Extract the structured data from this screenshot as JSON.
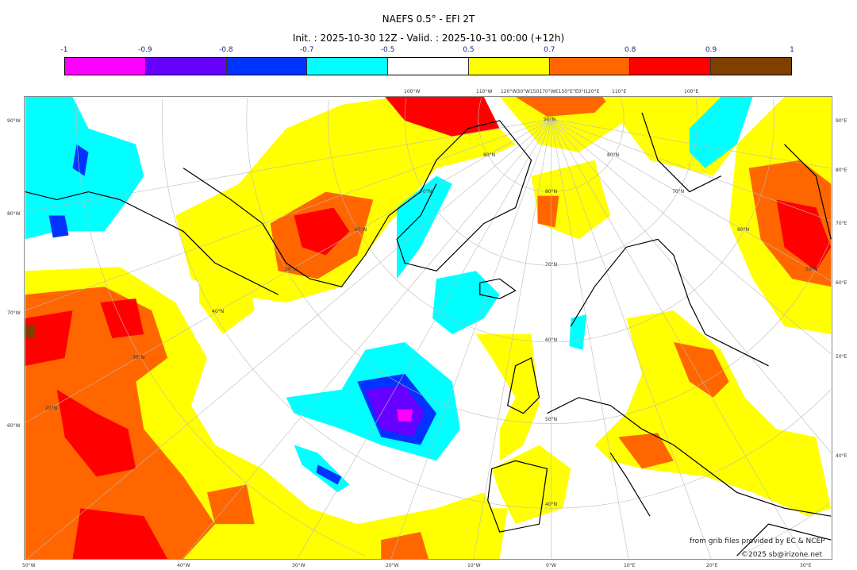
{
  "title": "NAEFS 0.5° - EFI 2T",
  "subtitle": "Init. : 2025-10-30 12Z - Valid. : 2025-10-31 00:00 (+12h)",
  "legend": {
    "ticks": [
      "-1",
      "-0.9",
      "-0.8",
      "-0.7",
      "-0.5",
      "0.5",
      "0.7",
      "0.8",
      "0.9",
      "1"
    ],
    "colors": [
      "#ff00ff",
      "#6600ff",
      "#0033ff",
      "#00ffff",
      "#ffffff",
      "#ffff00",
      "#ff6600",
      "#ff0000",
      "#7f3f00"
    ]
  },
  "axes": {
    "left": [
      "90°W",
      "80°W",
      "70°W",
      "60°W"
    ],
    "right": [
      "90°E",
      "80°E",
      "70°E",
      "60°E",
      "50°E",
      "40°E"
    ],
    "bottom": [
      "50°W",
      "40°W",
      "30°W",
      "20°W",
      "10°W",
      "0°W",
      "10°E",
      "20°E",
      "30°E"
    ],
    "top": [
      "100°W",
      "110°W",
      "120°W30°W150170°W€150°E°E0°I120°E",
      "110°E",
      "100°E"
    ],
    "lat_labels": [
      "90°N",
      "80°N",
      "70°N",
      "60°N",
      "50°N",
      "40°N",
      "80°N",
      "70°N",
      "60°N",
      "50°N",
      "40°N",
      "30°N",
      "20°N",
      "80°N",
      "70°N",
      "60°N",
      "50°N"
    ]
  },
  "credits": {
    "source": "from grib files provided by EC & NCEP",
    "copyright": "©2025 sb@irizone.net"
  }
}
